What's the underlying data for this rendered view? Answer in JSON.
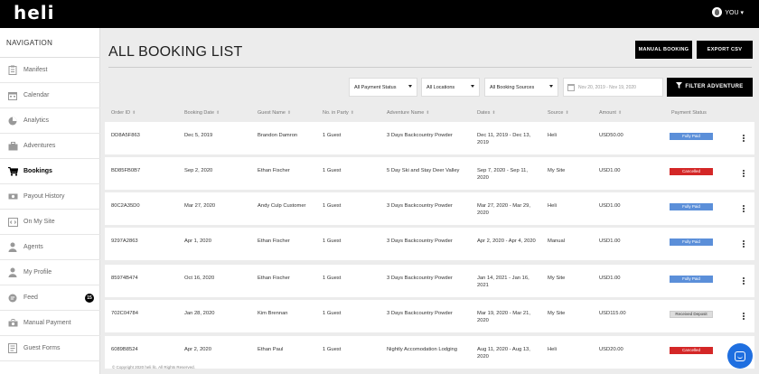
{
  "app": {
    "logo": "heli",
    "user_label": "YOU ▾"
  },
  "sidebar": {
    "title": "NAVIGATION",
    "items": [
      {
        "label": "Manifest",
        "icon": "clipboard-icon"
      },
      {
        "label": "Calendar",
        "icon": "calendar-icon"
      },
      {
        "label": "Analytics",
        "icon": "pie-chart-icon"
      },
      {
        "label": "Adventures",
        "icon": "briefcase-icon"
      },
      {
        "label": "Bookings",
        "icon": "cart-icon",
        "active": true
      },
      {
        "label": "Payout History",
        "icon": "money-icon"
      },
      {
        "label": "On My Site",
        "icon": "code-icon"
      },
      {
        "label": "Agents",
        "icon": "agents-icon"
      },
      {
        "label": "My Profile",
        "icon": "user-icon"
      },
      {
        "label": "Feed",
        "icon": "chat-icon",
        "badge": "15"
      },
      {
        "label": "Manual Payment",
        "icon": "cash-icon"
      },
      {
        "label": "Guest Forms",
        "icon": "form-icon"
      }
    ]
  },
  "main": {
    "title": "ALL BOOKING LIST",
    "manual_booking": "MANUAL BOOKING",
    "export_csv": "EXPORT CSV",
    "filters": {
      "payment_status": "All Payment Status",
      "locations": "All Locations",
      "booking_sources": "All Booking Sources",
      "date_range": "Nov 20, 2019 - Nov 19, 2020",
      "filter_button": "FILTER ADVENTURE"
    },
    "columns": [
      "Order ID",
      "Booking Date",
      "Guest Name",
      "No. in Party",
      "Adventure Name",
      "Dates",
      "Source",
      "Amount",
      "Payment Status"
    ],
    "rows": [
      {
        "order_id": "DD8A5F863",
        "booking_date": "Dec 5, 2019",
        "guest": "Brandon Damron",
        "party": "1 Guest",
        "adventure": "3 Days Backcountry Powder",
        "dates": "Dec 11, 2019 - Dec 13, 2019",
        "source": "Heli",
        "amount": "USD50.00",
        "status": "Fully Paid",
        "status_type": "paid"
      },
      {
        "order_id": "BD85FB0B7",
        "booking_date": "Sep 2, 2020",
        "guest": "Ethan Fischer",
        "party": "1 Guest",
        "adventure": "5 Day Ski and Stay Deer Valley",
        "dates": "Sep 7, 2020 - Sep 11, 2020",
        "source": "My Site",
        "amount": "USD1.00",
        "status": "Cancelled",
        "status_type": "cancelled"
      },
      {
        "order_id": "80C2A35D0",
        "booking_date": "Mar 27, 2020",
        "guest": "Andy Culp Customer",
        "party": "1 Guest",
        "adventure": "3 Days Backcountry Powder",
        "dates": "Mar 27, 2020 - Mar 29, 2020",
        "source": "Heli",
        "amount": "USD1.00",
        "status": "Fully Paid",
        "status_type": "paid"
      },
      {
        "order_id": "9297A2863",
        "booking_date": "Apr 1, 2020",
        "guest": "Ethan Fischer",
        "party": "1 Guest",
        "adventure": "3 Days Backcountry Powder",
        "dates": "Apr 2, 2020 - Apr 4, 2020",
        "source": "Manual",
        "amount": "USD1.00",
        "status": "Fully Paid",
        "status_type": "paid"
      },
      {
        "order_id": "85974B474",
        "booking_date": "Oct 16, 2020",
        "guest": "Ethan Fischer",
        "party": "1 Guest",
        "adventure": "3 Days Backcountry Powder",
        "dates": "Jan 14, 2021 - Jan 16, 2021",
        "source": "My Site",
        "amount": "USD1.00",
        "status": "Fully Paid",
        "status_type": "paid"
      },
      {
        "order_id": "702C04784",
        "booking_date": "Jan 28, 2020",
        "guest": "Kim Brennan",
        "party": "1 Guest",
        "adventure": "3 Days Backcountry Powder",
        "dates": "Mar 19, 2020 - Mar 21, 2020",
        "source": "My Site",
        "amount": "USD115.00",
        "status": "Received Deposit",
        "status_type": "deposit"
      },
      {
        "order_id": "6089B8524",
        "booking_date": "Apr 2, 2020",
        "guest": "Ethan Paul",
        "party": "1 Guest",
        "adventure": "Nightly Accomodation Lodging",
        "dates": "Aug 11, 2020 - Aug 13, 2020",
        "source": "Heli",
        "amount": "USD20.00",
        "status": "Cancelled",
        "status_type": "cancelled"
      }
    ],
    "footer": "© Copyright 2020 heli llc. All Rights Reserved."
  },
  "colors": {
    "fully_paid": "#5b8fd9",
    "cancelled": "#d42727",
    "deposit": "#dddddd",
    "chat": "#1f6fe0"
  }
}
